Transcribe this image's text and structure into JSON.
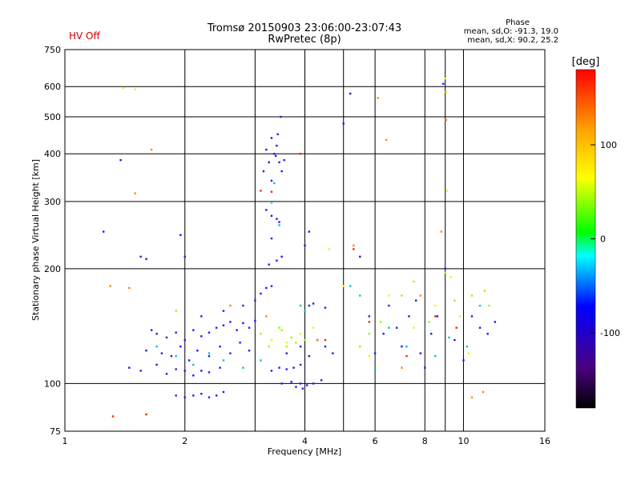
{
  "header": {
    "status": "HV Off",
    "title_line1": "Tromsø 20150903 23:06:00-23:07:43",
    "title_line2": "RwPretec (8p)",
    "phase_label": "Phase",
    "phase_o": "mean, sd,O: -91.3, 19.0",
    "phase_x": "mean, sd,X: 90.2, 25.2"
  },
  "chart_data": {
    "type": "scatter",
    "xlabel": "Frequency [MHz]",
    "ylabel": "Stationary phase Virtual Height [km]",
    "x_scale": "log",
    "y_scale": "log",
    "xlim": [
      1,
      16
    ],
    "ylim": [
      75,
      750
    ],
    "x_ticks": [
      1,
      2,
      4,
      6,
      8,
      10,
      16
    ],
    "x_minor": [
      3,
      5,
      9
    ],
    "y_ticks": [
      75,
      100,
      200,
      300,
      400,
      500,
      600,
      750
    ],
    "y_minor": [
      150
    ],
    "grid": true,
    "colorbar": {
      "label": "[deg]",
      "ticks": [
        100,
        0,
        -100
      ],
      "range": [
        -180,
        180
      ],
      "colors": [
        "#000000",
        "#4b0082",
        "#0000ff",
        "#00ffff",
        "#00ff00",
        "#ffff00",
        "#ffa500",
        "#ff0000"
      ]
    },
    "series": [
      {
        "color": "#1a1aff",
        "points": [
          [
            1.38,
            385
          ],
          [
            1.25,
            250
          ],
          [
            1.55,
            215
          ],
          [
            1.6,
            212
          ],
          [
            1.95,
            245
          ],
          [
            2.0,
            215
          ],
          [
            1.65,
            138
          ],
          [
            1.7,
            135
          ],
          [
            1.8,
            132
          ],
          [
            1.9,
            136
          ],
          [
            2.0,
            130
          ],
          [
            2.1,
            138
          ],
          [
            2.2,
            133
          ],
          [
            2.3,
            136
          ],
          [
            2.4,
            140
          ],
          [
            2.5,
            142
          ],
          [
            2.6,
            145
          ],
          [
            2.7,
            138
          ],
          [
            2.8,
            144
          ],
          [
            2.9,
            140
          ],
          [
            3.0,
            146
          ],
          [
            1.6,
            122
          ],
          [
            1.75,
            120
          ],
          [
            1.85,
            118
          ],
          [
            1.95,
            125
          ],
          [
            2.05,
            115
          ],
          [
            2.15,
            122
          ],
          [
            2.3,
            118
          ],
          [
            2.45,
            125
          ],
          [
            2.6,
            120
          ],
          [
            2.75,
            128
          ],
          [
            2.9,
            122
          ],
          [
            1.45,
            110
          ],
          [
            1.55,
            108
          ],
          [
            1.7,
            112
          ],
          [
            1.8,
            106
          ],
          [
            1.9,
            109
          ],
          [
            2.0,
            108
          ],
          [
            2.1,
            105
          ],
          [
            2.2,
            108
          ],
          [
            2.3,
            107
          ],
          [
            2.45,
            110
          ],
          [
            1.9,
            93
          ],
          [
            2.0,
            92
          ],
          [
            2.1,
            93
          ],
          [
            2.2,
            94
          ],
          [
            2.3,
            92
          ],
          [
            2.4,
            93
          ],
          [
            2.5,
            95
          ],
          [
            2.2,
            150
          ],
          [
            2.5,
            155
          ],
          [
            2.8,
            160
          ],
          [
            3.0,
            165
          ],
          [
            3.1,
            172
          ],
          [
            3.2,
            178
          ],
          [
            3.3,
            180
          ],
          [
            3.15,
            360
          ],
          [
            3.25,
            380
          ],
          [
            3.3,
            340
          ],
          [
            3.35,
            400
          ],
          [
            3.4,
            420
          ],
          [
            3.45,
            380
          ],
          [
            3.5,
            360
          ],
          [
            3.42,
            450
          ],
          [
            3.48,
            500
          ],
          [
            3.3,
            440
          ],
          [
            3.38,
            395
          ],
          [
            3.55,
            385
          ],
          [
            3.2,
            410
          ],
          [
            3.2,
            285
          ],
          [
            3.3,
            275
          ],
          [
            3.4,
            270
          ],
          [
            3.45,
            265
          ],
          [
            3.3,
            240
          ],
          [
            3.25,
            205
          ],
          [
            3.4,
            210
          ],
          [
            3.5,
            215
          ],
          [
            3.3,
            108
          ],
          [
            3.45,
            110
          ],
          [
            3.6,
            109
          ],
          [
            3.75,
            110
          ],
          [
            3.9,
            112
          ],
          [
            3.5,
            100
          ],
          [
            3.7,
            101
          ],
          [
            3.9,
            100
          ],
          [
            4.05,
            99
          ],
          [
            4.2,
            100
          ],
          [
            4.4,
            102
          ],
          [
            3.8,
            98
          ],
          [
            3.95,
            97
          ],
          [
            3.6,
            120
          ],
          [
            3.9,
            125
          ],
          [
            4.1,
            118
          ],
          [
            4.3,
            130
          ],
          [
            4.5,
            125
          ],
          [
            4.7,
            120
          ],
          [
            4.1,
            160
          ],
          [
            4.2,
            162
          ],
          [
            4.5,
            158
          ],
          [
            4.0,
            230
          ],
          [
            4.1,
            250
          ],
          [
            5.0,
            480
          ],
          [
            5.2,
            575
          ],
          [
            5.5,
            215
          ],
          [
            5.8,
            150
          ],
          [
            6.0,
            120
          ],
          [
            6.3,
            135
          ],
          [
            6.5,
            160
          ],
          [
            6.8,
            140
          ],
          [
            7.0,
            125
          ],
          [
            7.3,
            150
          ],
          [
            7.6,
            165
          ],
          [
            7.8,
            120
          ],
          [
            8.0,
            110
          ],
          [
            8.3,
            135
          ],
          [
            8.6,
            150
          ],
          [
            8.9,
            610
          ],
          [
            9.0,
            200
          ],
          [
            9.5,
            130
          ],
          [
            10.0,
            115
          ],
          [
            10.5,
            150
          ],
          [
            11.0,
            140
          ],
          [
            11.5,
            135
          ],
          [
            12.0,
            145
          ]
        ]
      },
      {
        "color": "#00c8c8",
        "points": [
          [
            1.7,
            125
          ],
          [
            1.9,
            118
          ],
          [
            2.1,
            112
          ],
          [
            2.3,
            120
          ],
          [
            2.5,
            115
          ],
          [
            2.8,
            110
          ],
          [
            3.1,
            115
          ],
          [
            3.3,
            298
          ],
          [
            3.35,
            335
          ],
          [
            3.45,
            260
          ],
          [
            3.9,
            160
          ],
          [
            4.0,
            155
          ],
          [
            5.2,
            180
          ],
          [
            5.5,
            170
          ],
          [
            6.0,
            110
          ],
          [
            6.5,
            140
          ],
          [
            7.2,
            125
          ],
          [
            8.5,
            118
          ],
          [
            9.2,
            132
          ],
          [
            10.2,
            125
          ],
          [
            11.0,
            160
          ]
        ]
      },
      {
        "color": "#8cff00",
        "points": [
          [
            1.9,
            155
          ],
          [
            3.1,
            135
          ],
          [
            3.3,
            130
          ],
          [
            3.5,
            138
          ],
          [
            3.6,
            125
          ],
          [
            3.8,
            128
          ],
          [
            3.45,
            140
          ],
          [
            3.7,
            132
          ],
          [
            4.0,
            130
          ],
          [
            3.25,
            125
          ],
          [
            5.5,
            125
          ],
          [
            5.8,
            135
          ],
          [
            6.2,
            145
          ],
          [
            7.0,
            170
          ],
          [
            7.5,
            185
          ],
          [
            8.2,
            145
          ],
          [
            9.0,
            195
          ],
          [
            9.5,
            165
          ],
          [
            10.5,
            170
          ],
          [
            11.3,
            175
          ],
          [
            11.6,
            160
          ]
        ]
      },
      {
        "color": "#ffee00",
        "points": [
          [
            1.4,
            595
          ],
          [
            1.5,
            590
          ],
          [
            3.3,
            130
          ],
          [
            3.6,
            128
          ],
          [
            3.9,
            135
          ],
          [
            4.2,
            140
          ],
          [
            4.6,
            225
          ],
          [
            5.0,
            180
          ],
          [
            5.8,
            118
          ],
          [
            6.5,
            170
          ],
          [
            7.5,
            140
          ],
          [
            8.5,
            160
          ],
          [
            9.0,
            630
          ],
          [
            9.05,
            580
          ],
          [
            9.1,
            320
          ],
          [
            9.3,
            190
          ],
          [
            9.8,
            150
          ],
          [
            10.3,
            120
          ]
        ]
      },
      {
        "color": "#ff8800",
        "points": [
          [
            1.5,
            315
          ],
          [
            1.3,
            180
          ],
          [
            1.45,
            178
          ],
          [
            1.65,
            410
          ],
          [
            2.6,
            160
          ],
          [
            3.2,
            150
          ],
          [
            4.3,
            130
          ],
          [
            5.3,
            230
          ],
          [
            6.1,
            560
          ],
          [
            6.4,
            435
          ],
          [
            7.0,
            110
          ],
          [
            7.8,
            170
          ],
          [
            8.8,
            250
          ],
          [
            9.05,
            490
          ],
          [
            10.5,
            92
          ],
          [
            11.2,
            95
          ]
        ]
      },
      {
        "color": "#ff2000",
        "points": [
          [
            1.32,
            82
          ],
          [
            1.6,
            83
          ],
          [
            3.1,
            320
          ],
          [
            3.3,
            318
          ],
          [
            3.9,
            400
          ],
          [
            4.5,
            130
          ],
          [
            5.3,
            225
          ],
          [
            5.8,
            145
          ],
          [
            7.2,
            118
          ],
          [
            8.5,
            150
          ],
          [
            9.6,
            140
          ]
        ]
      }
    ]
  }
}
